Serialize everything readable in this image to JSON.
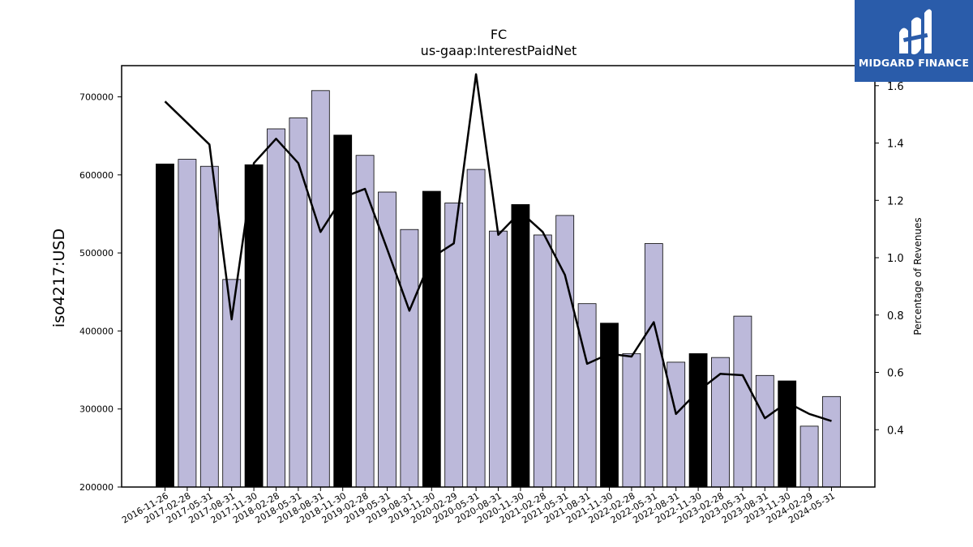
{
  "chart_data": {
    "type": "bar",
    "title": "FC",
    "subtitle": "us-gaap:InterestPaidNet",
    "ylabel": "iso4217:USD",
    "y2label": "Percentage of Revenues",
    "ylim": [
      200000,
      740000
    ],
    "y2lim": [
      0.2,
      1.67
    ],
    "yticks": [
      200000,
      300000,
      400000,
      500000,
      600000,
      700000
    ],
    "y2ticks": [
      0.4,
      0.6,
      0.8,
      1.0,
      1.2,
      1.4,
      1.6
    ],
    "categories": [
      "2016-11-26",
      "2017-02-28",
      "2017-05-31",
      "2017-08-31",
      "2017-11-30",
      "2018-02-28",
      "2018-05-31",
      "2018-08-31",
      "2018-11-30",
      "2019-02-28",
      "2019-05-31",
      "2019-08-31",
      "2019-11-30",
      "2020-02-29",
      "2020-05-31",
      "2020-08-31",
      "2020-11-30",
      "2021-02-28",
      "2021-05-31",
      "2021-08-31",
      "2021-11-30",
      "2022-02-28",
      "2022-05-31",
      "2022-08-31",
      "2022-11-30",
      "2023-02-28",
      "2023-05-31",
      "2023-08-31",
      "2023-11-30",
      "2024-02-29",
      "2024-05-31"
    ],
    "series": [
      {
        "values": [
          614000,
          620000,
          611000,
          466000,
          613000,
          659000,
          673000,
          708000,
          651000,
          625000,
          578000,
          530000,
          579000,
          564000,
          607000,
          528000,
          562000,
          523000,
          548000,
          435000,
          410000,
          371000,
          512000,
          360000,
          371000,
          366000,
          419000,
          343000,
          336000,
          278000,
          316000
        ],
        "fiscal_year_end": [
          true,
          false,
          false,
          false,
          true,
          false,
          false,
          false,
          true,
          false,
          false,
          false,
          true,
          false,
          false,
          false,
          true,
          false,
          false,
          false,
          true,
          false,
          false,
          false,
          true,
          false,
          false,
          false,
          true,
          false,
          false
        ]
      },
      {
        "name": "Percentage of Revenues",
        "values": [
          1.545,
          1.47,
          1.395,
          0.785,
          1.33,
          1.415,
          1.33,
          1.09,
          1.21,
          1.24,
          1.03,
          0.815,
          1.0,
          1.05,
          1.64,
          1.08,
          1.16,
          1.09,
          0.94,
          0.63,
          0.665,
          0.655,
          0.775,
          0.455,
          0.535,
          0.595,
          0.59,
          0.44,
          0.495,
          0.455,
          0.43
        ]
      }
    ],
    "colors": {
      "bar": "#bcb9da",
      "bar_fiscal_year_end": "#000000",
      "line": "#000000"
    },
    "grid": false,
    "legend": "none"
  },
  "logo": {
    "text": "MIDGARD FINANCE",
    "color": "#2a5caa"
  }
}
